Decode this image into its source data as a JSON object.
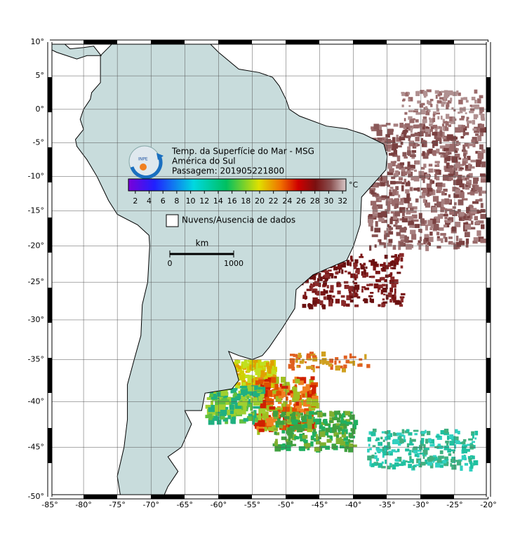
{
  "title": {
    "lines": [
      "Temp. da Superfície do Mar - MSG",
      "América do Sul",
      "Passagem: 201905221800"
    ]
  },
  "colorbar": {
    "unit": "°C",
    "range": [
      1,
      32.5
    ],
    "ticks": [
      2,
      4,
      6,
      8,
      10,
      12,
      14,
      16,
      18,
      20,
      22,
      24,
      26,
      28,
      30,
      32
    ]
  },
  "legend": {
    "label": "Nuvens/Ausencia de dados"
  },
  "scale_bar": {
    "unit": "km",
    "range": [
      0,
      1000
    ],
    "ticks": [
      0,
      1000
    ]
  },
  "map": {
    "projection": "mercator",
    "xlim": [
      -85,
      -20
    ],
    "ylim": [
      -50,
      10
    ],
    "xticks": [
      {
        "value": -85,
        "label": "-85°"
      },
      {
        "value": -80,
        "label": "-80°"
      },
      {
        "value": -75,
        "label": "-75°"
      },
      {
        "value": -70,
        "label": "-70°"
      },
      {
        "value": -65,
        "label": "-65°"
      },
      {
        "value": -60,
        "label": "-60°"
      },
      {
        "value": -55,
        "label": "-55°"
      },
      {
        "value": -50,
        "label": "-50°"
      },
      {
        "value": -45,
        "label": "-45°"
      },
      {
        "value": -40,
        "label": "-40°"
      },
      {
        "value": -35,
        "label": "-35°"
      },
      {
        "value": -30,
        "label": "-30°"
      },
      {
        "value": -25,
        "label": "-25°"
      },
      {
        "value": -20,
        "label": "-20°"
      }
    ],
    "yticks": [
      {
        "value": 10,
        "label": "10°"
      },
      {
        "value": 5,
        "label": "5°"
      },
      {
        "value": 0,
        "label": "0°"
      },
      {
        "value": -5,
        "label": "-5°"
      },
      {
        "value": -10,
        "label": "-10°"
      },
      {
        "value": -15,
        "label": "-15°"
      },
      {
        "value": -20,
        "label": "-20°"
      },
      {
        "value": -25,
        "label": "-25°"
      },
      {
        "value": -30,
        "label": "-30°"
      },
      {
        "value": -35,
        "label": "-35°"
      },
      {
        "value": -40,
        "label": "-40°"
      },
      {
        "value": -45,
        "label": "-45°"
      },
      {
        "value": -50,
        "label": "-50°"
      }
    ]
  }
}
